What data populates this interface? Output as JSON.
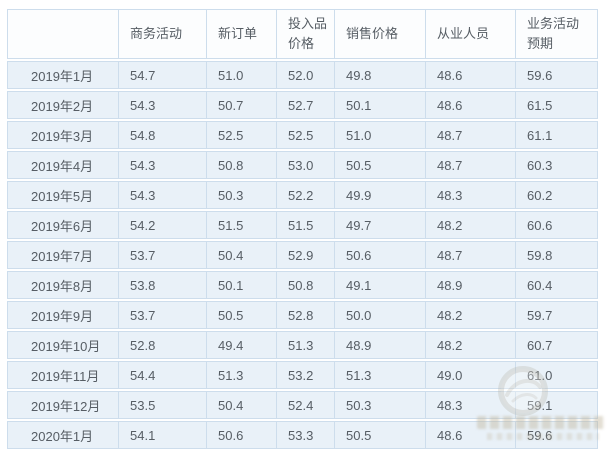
{
  "colors": {
    "row_background": "#e9f1f8",
    "header_background": "#fcfdfe",
    "border": "#cdddec",
    "text": "#565d64",
    "watermark": "#b7b2a6"
  },
  "table": {
    "columns": [
      {
        "label": ""
      },
      {
        "label": "商务活动"
      },
      {
        "label": "新订单"
      },
      {
        "label": "投入品\n价格"
      },
      {
        "label": "销售价格"
      },
      {
        "label": "从业人员"
      },
      {
        "label": "业务活动\n预期"
      }
    ],
    "rows": [
      {
        "label": "2019年1月",
        "values": [
          "54.7",
          "51.0",
          "52.0",
          "49.8",
          "48.6",
          "59.6"
        ]
      },
      {
        "label": "2019年2月",
        "values": [
          "54.3",
          "50.7",
          "52.7",
          "50.1",
          "48.6",
          "61.5"
        ]
      },
      {
        "label": "2019年3月",
        "values": [
          "54.8",
          "52.5",
          "52.5",
          "51.0",
          "48.7",
          "61.1"
        ]
      },
      {
        "label": "2019年4月",
        "values": [
          "54.3",
          "50.8",
          "53.0",
          "50.5",
          "48.7",
          "60.3"
        ]
      },
      {
        "label": "2019年5月",
        "values": [
          "54.3",
          "50.3",
          "52.2",
          "49.9",
          "48.3",
          "60.2"
        ]
      },
      {
        "label": "2019年6月",
        "values": [
          "54.2",
          "51.5",
          "51.5",
          "49.7",
          "48.2",
          "60.6"
        ]
      },
      {
        "label": "2019年7月",
        "values": [
          "53.7",
          "50.4",
          "52.9",
          "50.6",
          "48.7",
          "59.8"
        ]
      },
      {
        "label": "2019年8月",
        "values": [
          "53.8",
          "50.1",
          "50.8",
          "49.1",
          "48.9",
          "60.4"
        ]
      },
      {
        "label": "2019年9月",
        "values": [
          "53.7",
          "50.5",
          "52.8",
          "50.0",
          "48.2",
          "59.7"
        ]
      },
      {
        "label": "2019年10月",
        "values": [
          "52.8",
          "49.4",
          "51.3",
          "48.9",
          "48.2",
          "60.7"
        ]
      },
      {
        "label": "2019年11月",
        "values": [
          "54.4",
          "51.3",
          "53.2",
          "51.3",
          "49.0",
          "61.0"
        ]
      },
      {
        "label": "2019年12月",
        "values": [
          "53.5",
          "50.4",
          "52.4",
          "50.3",
          "48.3",
          "59.1"
        ]
      },
      {
        "label": "2020年1月",
        "values": [
          "54.1",
          "50.6",
          "53.3",
          "50.5",
          "48.6",
          "59.6"
        ]
      }
    ]
  },
  "chart_data": {
    "type": "table",
    "title": "",
    "categories": [
      "2019年1月",
      "2019年2月",
      "2019年3月",
      "2019年4月",
      "2019年5月",
      "2019年6月",
      "2019年7月",
      "2019年8月",
      "2019年9月",
      "2019年10月",
      "2019年11月",
      "2019年12月",
      "2020年1月"
    ],
    "series": [
      {
        "name": "商务活动",
        "values": [
          54.7,
          54.3,
          54.8,
          54.3,
          54.3,
          54.2,
          53.7,
          53.8,
          53.7,
          52.8,
          54.4,
          53.5,
          54.1
        ]
      },
      {
        "name": "新订单",
        "values": [
          51.0,
          50.7,
          52.5,
          50.8,
          50.3,
          51.5,
          50.4,
          50.1,
          50.5,
          49.4,
          51.3,
          50.4,
          50.6
        ]
      },
      {
        "name": "投入品价格",
        "values": [
          52.0,
          52.7,
          52.5,
          53.0,
          52.2,
          51.5,
          52.9,
          50.8,
          52.8,
          51.3,
          53.2,
          52.4,
          53.3
        ]
      },
      {
        "name": "销售价格",
        "values": [
          49.8,
          50.1,
          51.0,
          50.5,
          49.9,
          49.7,
          50.6,
          49.1,
          50.0,
          48.9,
          51.3,
          50.3,
          50.5
        ]
      },
      {
        "name": "从业人员",
        "values": [
          48.6,
          48.6,
          48.7,
          48.7,
          48.3,
          48.2,
          48.7,
          48.9,
          48.2,
          48.2,
          49.0,
          48.3,
          48.6
        ]
      },
      {
        "name": "业务活动预期",
        "values": [
          59.6,
          61.5,
          61.1,
          60.3,
          60.2,
          60.6,
          59.8,
          60.4,
          59.7,
          60.7,
          61.0,
          59.1,
          59.6
        ]
      }
    ]
  },
  "watermark": {
    "icon": "globe-logo"
  }
}
